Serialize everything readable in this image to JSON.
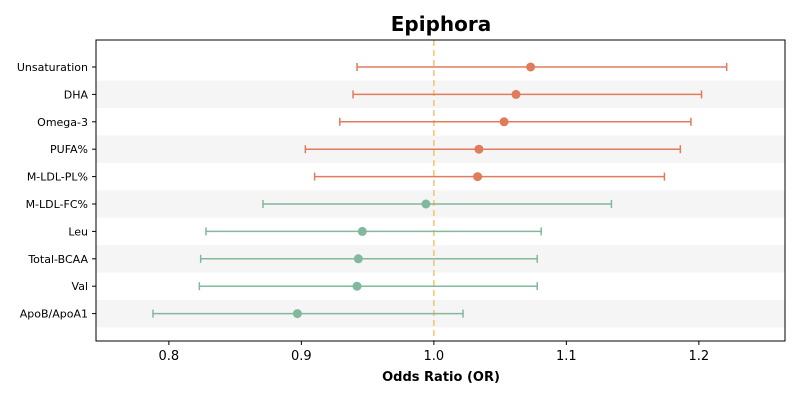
{
  "chart_data": {
    "type": "forest",
    "title": "Epiphora",
    "xlabel": "Odds Ratio (OR)",
    "xlim": [
      0.745,
      1.265
    ],
    "xticks": [
      0.8,
      0.9,
      1.0,
      1.1,
      1.2
    ],
    "xtick_labels": [
      "0.8",
      "0.9",
      "1.0",
      "1.1",
      "1.2"
    ],
    "reference_line": 1.0,
    "reference_color": "#f6c26b",
    "band_color": "#f5f5f5",
    "positive_color": "#e07b5c",
    "negative_color": "#82b89b",
    "rows": [
      {
        "label": "Unsaturation",
        "or": 1.073,
        "lower": 0.942,
        "upper": 1.221
      },
      {
        "label": "DHA",
        "or": 1.062,
        "lower": 0.939,
        "upper": 1.202
      },
      {
        "label": "Omega-3",
        "or": 1.053,
        "lower": 0.929,
        "upper": 1.194
      },
      {
        "label": "PUFA%",
        "or": 1.034,
        "lower": 0.903,
        "upper": 1.186
      },
      {
        "label": "M-LDL-PL%",
        "or": 1.033,
        "lower": 0.91,
        "upper": 1.174
      },
      {
        "label": "M-LDL-FC%",
        "or": 0.994,
        "lower": 0.871,
        "upper": 1.134
      },
      {
        "label": "Leu",
        "or": 0.946,
        "lower": 0.828,
        "upper": 1.081
      },
      {
        "label": "Total-BCAA",
        "or": 0.943,
        "lower": 0.824,
        "upper": 1.078
      },
      {
        "label": "Val",
        "or": 0.942,
        "lower": 0.823,
        "upper": 1.078
      },
      {
        "label": "ApoB/ApoA1",
        "or": 0.897,
        "lower": 0.788,
        "upper": 1.022
      }
    ]
  }
}
